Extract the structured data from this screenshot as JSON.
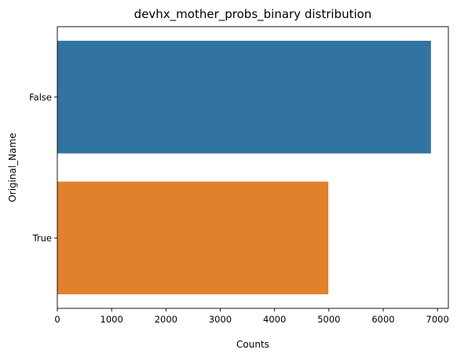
{
  "chart_data": {
    "type": "bar",
    "orientation": "horizontal",
    "title": "devhx_mother_probs_binary distribution",
    "xlabel": "Counts",
    "ylabel": "Original_Name",
    "categories": [
      "False",
      "True"
    ],
    "values": [
      6880,
      4990
    ],
    "xlim": [
      0,
      7200
    ],
    "xticks": [
      0,
      1000,
      2000,
      3000,
      4000,
      5000,
      6000,
      7000
    ],
    "colors": [
      "#3274a1",
      "#e1812c"
    ],
    "grid": false,
    "legend": "none"
  }
}
